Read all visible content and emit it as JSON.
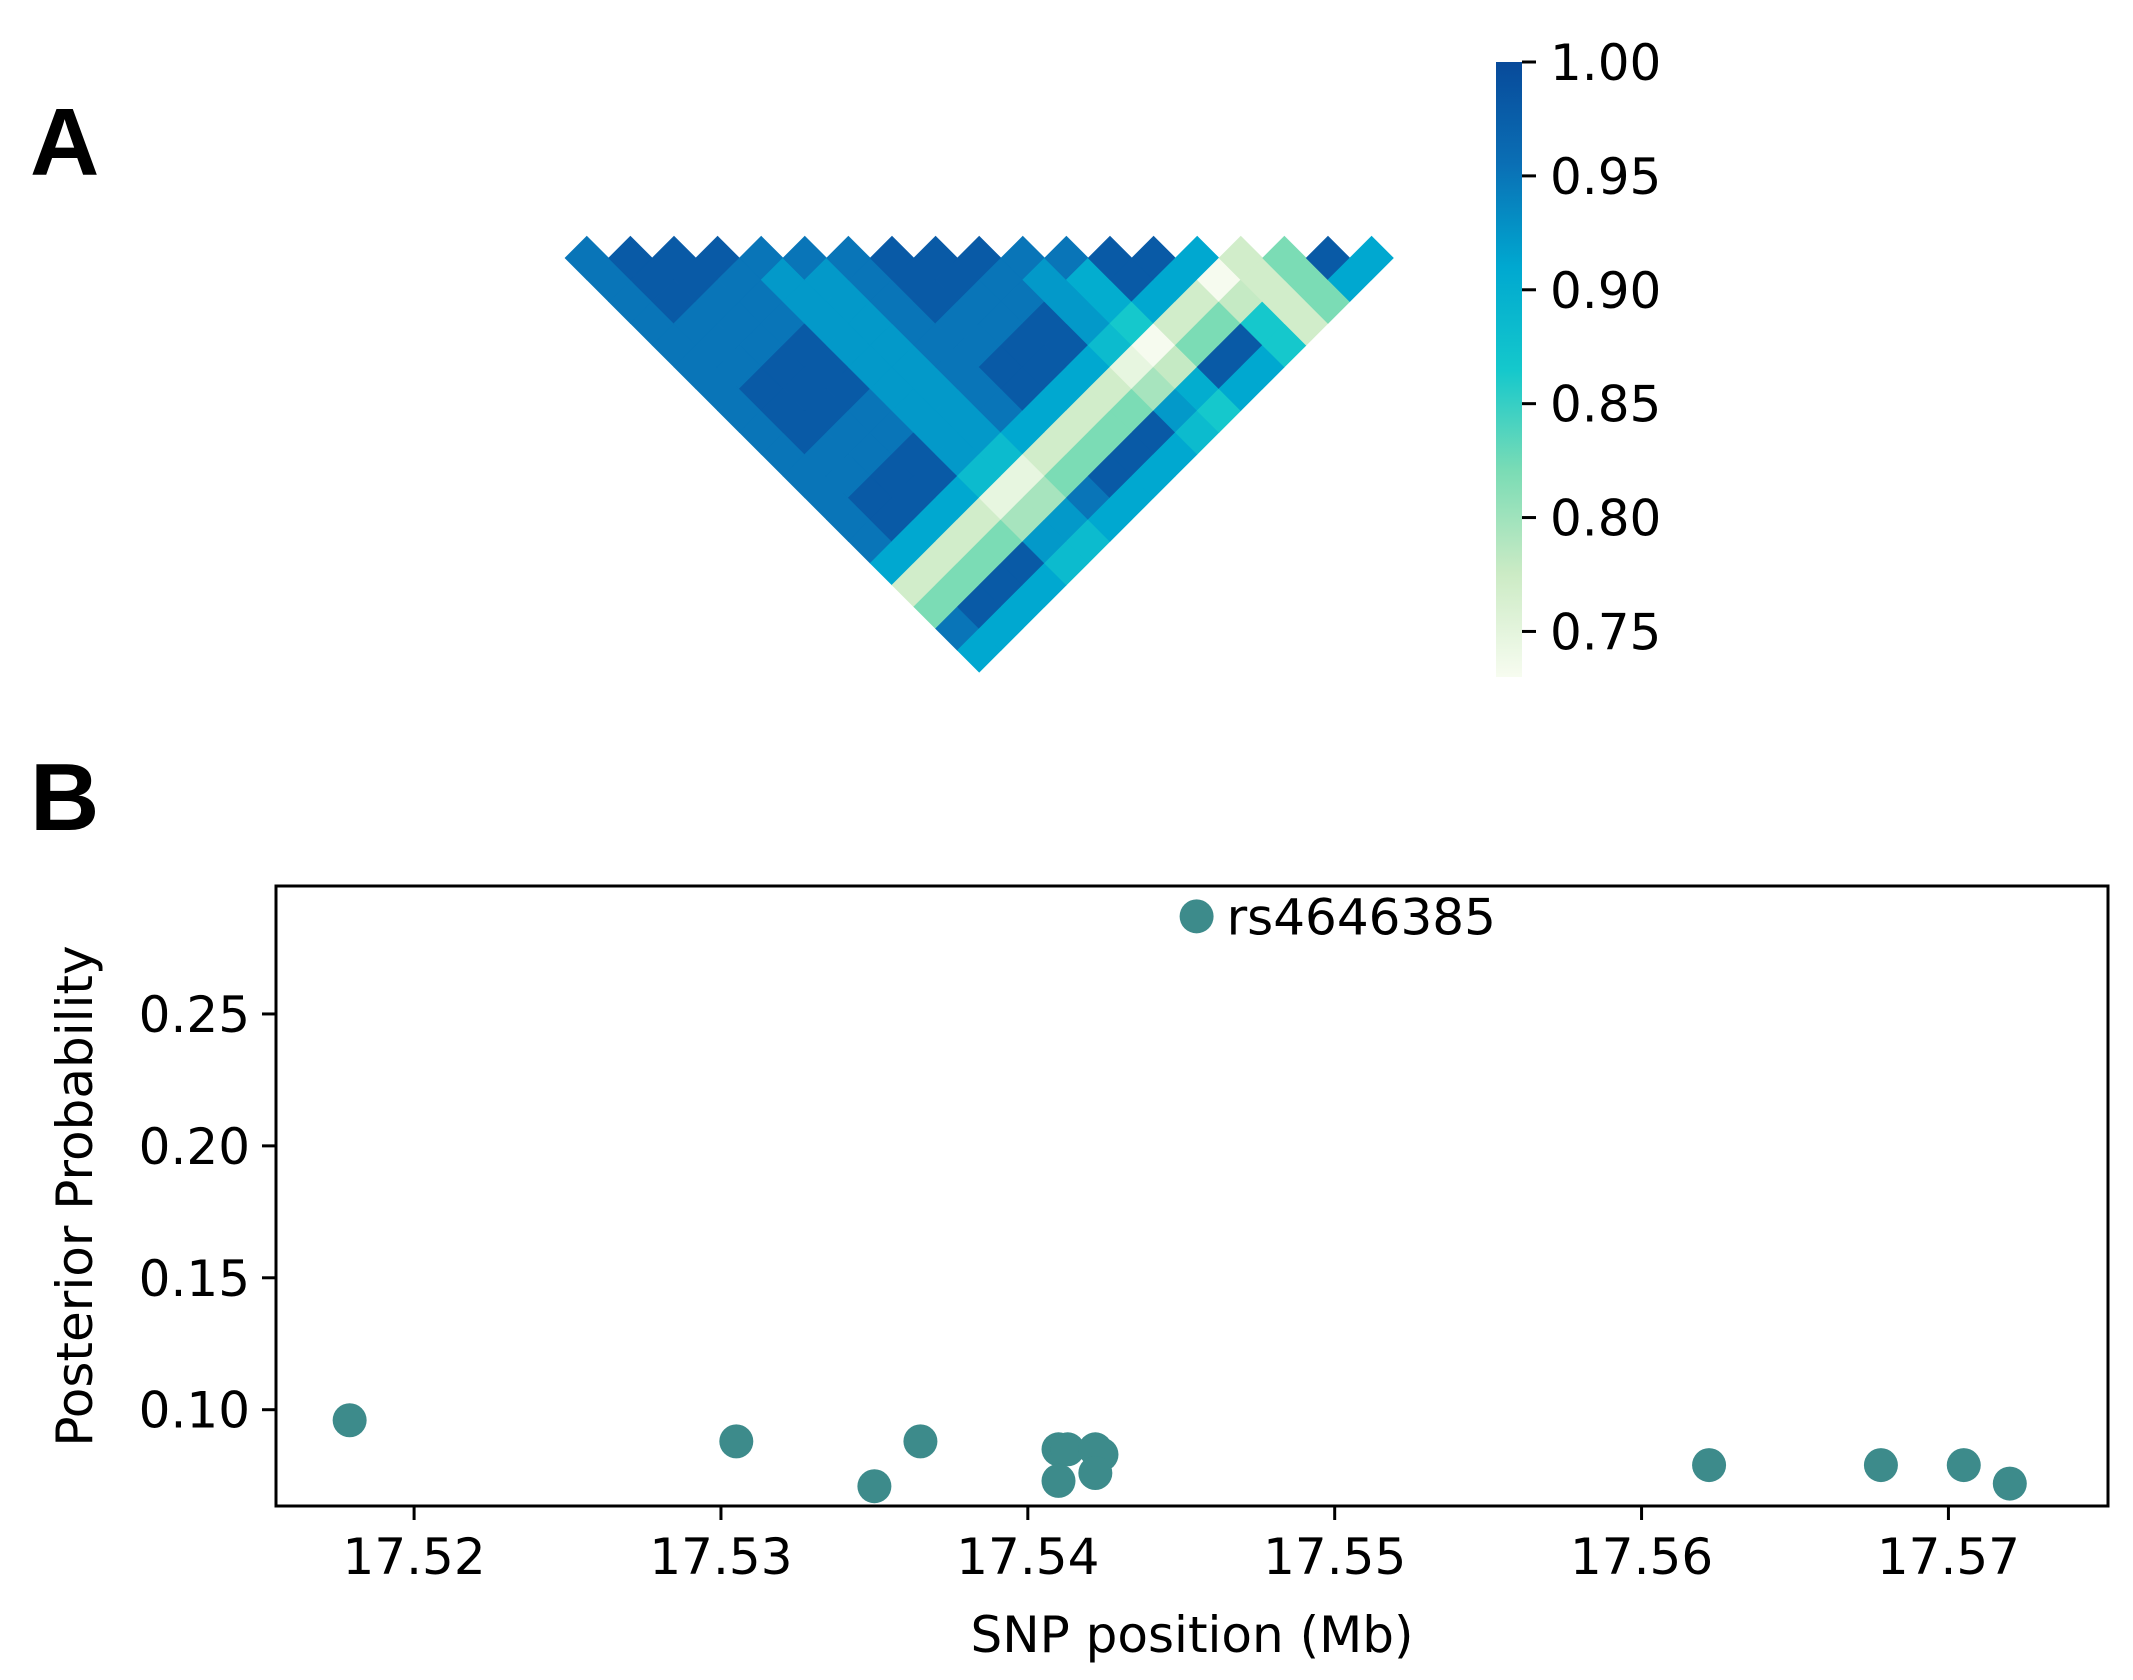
{
  "chart_data": [
    {
      "panel": "A",
      "type": "heatmap",
      "colorbar": {
        "min": 0.73,
        "max": 1.0,
        "ticks": [
          "1.00",
          "0.95",
          "0.90",
          "0.85",
          "0.80",
          "0.75"
        ],
        "tick_values": [
          1.0,
          0.95,
          0.9,
          0.85,
          0.8,
          0.75
        ],
        "colors": [
          "#f7fcf0",
          "#ccebc5",
          "#7bdcb5",
          "#14c8cc",
          "#00a8d0",
          "#0a6fb5",
          "#084a9a"
        ]
      },
      "matrix_size": 19,
      "marker_values": [
        0.95,
        0.98,
        0.98,
        0.98,
        0.95,
        0.95,
        0.95,
        0.98,
        0.98,
        0.98,
        0.95,
        0.95,
        0.98,
        0.98,
        0.91,
        0.77,
        0.82,
        0.98,
        0.91
      ],
      "row_factors": [
        1.0,
        1.0,
        1.0,
        1.0,
        0.97,
        0.97,
        1.0,
        1.0,
        1.0,
        1.0,
        0.97,
        0.95,
        1.0,
        1.0,
        0.95,
        1.0,
        1.0,
        1.0,
        1.0
      ]
    },
    {
      "panel": "B",
      "type": "scatter",
      "xlabel": "SNP position (Mb)",
      "ylabel": "Posterior Probability",
      "xlim": [
        17.5155,
        17.5752
      ],
      "ylim": [
        0.0635,
        0.2985
      ],
      "xticks": [
        "17.52",
        "17.53",
        "17.54",
        "17.55",
        "17.56",
        "17.57"
      ],
      "xtick_values": [
        17.52,
        17.53,
        17.54,
        17.55,
        17.56,
        17.57
      ],
      "yticks": [
        "0.10",
        "0.15",
        "0.20",
        "0.25"
      ],
      "ytick_values": [
        0.1,
        0.15,
        0.2,
        0.25
      ],
      "point_color": "#3d8b8b",
      "points": [
        {
          "x": 17.5179,
          "y": 0.096
        },
        {
          "x": 17.5305,
          "y": 0.088
        },
        {
          "x": 17.535,
          "y": 0.071
        },
        {
          "x": 17.5365,
          "y": 0.088
        },
        {
          "x": 17.541,
          "y": 0.085
        },
        {
          "x": 17.5413,
          "y": 0.085
        },
        {
          "x": 17.541,
          "y": 0.073
        },
        {
          "x": 17.5422,
          "y": 0.085
        },
        {
          "x": 17.5424,
          "y": 0.083
        },
        {
          "x": 17.5422,
          "y": 0.076
        },
        {
          "x": 17.5455,
          "y": 0.287,
          "label": "rs4646385"
        },
        {
          "x": 17.5622,
          "y": 0.079
        },
        {
          "x": 17.5678,
          "y": 0.079
        },
        {
          "x": 17.5705,
          "y": 0.079
        },
        {
          "x": 17.572,
          "y": 0.072
        }
      ]
    }
  ],
  "panel_labels": {
    "a": "A",
    "b": "B"
  }
}
